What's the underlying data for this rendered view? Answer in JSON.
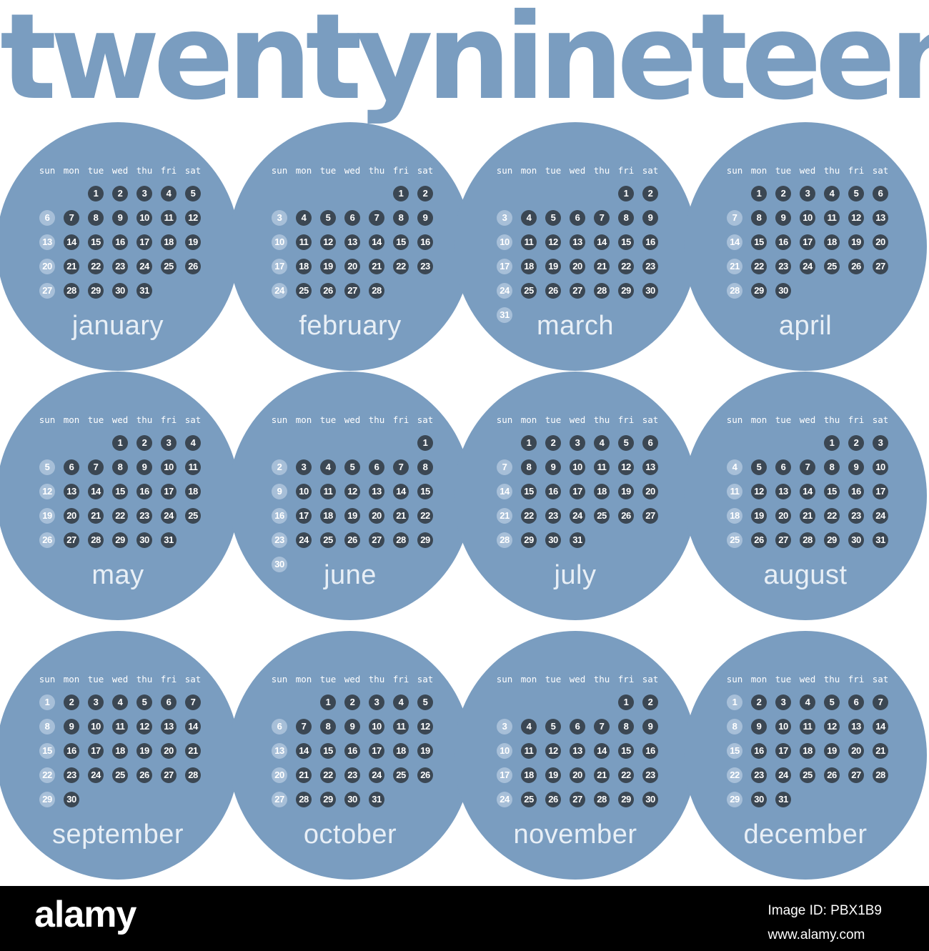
{
  "title": "twentynineteen",
  "weekdays": [
    "sun",
    "mon",
    "tue",
    "wed",
    "thu",
    "fri",
    "sat"
  ],
  "months": [
    {
      "name": "january",
      "days": 31,
      "start": 2
    },
    {
      "name": "february",
      "days": 28,
      "start": 5
    },
    {
      "name": "march",
      "days": 31,
      "start": 5
    },
    {
      "name": "april",
      "days": 30,
      "start": 1
    },
    {
      "name": "may",
      "days": 31,
      "start": 3
    },
    {
      "name": "june",
      "days": 30,
      "start": 6
    },
    {
      "name": "july",
      "days": 31,
      "start": 1
    },
    {
      "name": "august",
      "days": 31,
      "start": 4
    },
    {
      "name": "september",
      "days": 30,
      "start": 0
    },
    {
      "name": "october",
      "days": 31,
      "start": 2
    },
    {
      "name": "november",
      "days": 30,
      "start": 5
    },
    {
      "name": "december",
      "days": 31,
      "start": 0
    }
  ],
  "colors": {
    "circle": "#7a9dc0",
    "day_dot": "#3b4753",
    "sunday_dot": "#a7bfd8",
    "month_label": "#e8eff6"
  },
  "footer": {
    "brand": "alamy",
    "image_id_label": "Image ID: PBX1B9",
    "site": "www.alamy.com"
  }
}
